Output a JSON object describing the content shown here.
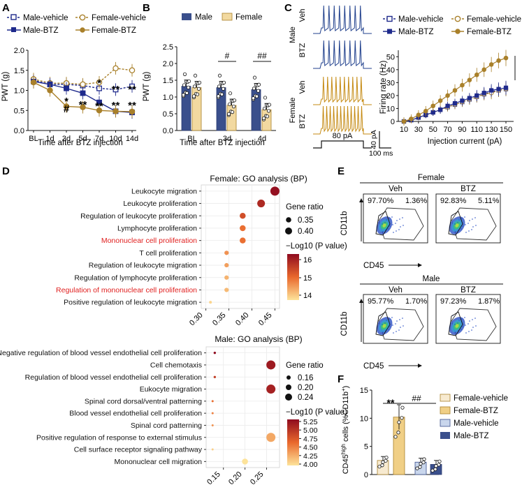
{
  "panels": {
    "A": {
      "label": "A",
      "legend": [
        "Male-vehicle",
        "Female-vehicle",
        "Male-BTZ",
        "Female-BTZ"
      ],
      "ylabel": "PWT (g)",
      "xlabel": "Time after BTZ injection",
      "xticks": [
        "BL",
        "1d",
        "3d",
        "5d",
        "7d",
        "10d",
        "14d"
      ],
      "yticks": [
        "0.0",
        "0.5",
        "1.0",
        "1.5",
        "2.0"
      ],
      "sig_marks": [
        "*",
        "#",
        "**",
        "**",
        "*",
        "**",
        "**",
        "**",
        "**",
        "**"
      ]
    },
    "B": {
      "label": "B",
      "legend": [
        "Male",
        "Female"
      ],
      "ylabel": "PWT (g)",
      "xlabel": "Time after BTZ injection",
      "xticks": [
        "BL",
        "3d",
        "4d"
      ],
      "yticks": [
        "0.0",
        "0.5",
        "1.0",
        "1.5",
        "2.0",
        "2.5"
      ],
      "sig_marks": [
        "#",
        "##"
      ]
    },
    "C": {
      "label": "C",
      "trace_labels": [
        "Male",
        "Veh",
        "BTZ",
        "Female",
        "Veh",
        "BTZ"
      ],
      "stim_label": "80 pA",
      "scale_y": "40 pA",
      "scale_x": "100 ms",
      "legend": [
        "Male-vehicle",
        "Female-vehicle",
        "Male-BTZ",
        "Female-BTZ"
      ],
      "ylabel": "Firing rate (Hz)",
      "xlabel": "Injection current (pA)",
      "xticks": [
        "10",
        "30",
        "50",
        "70",
        "90",
        "110",
        "130",
        "150"
      ],
      "yticks": [
        "0",
        "10",
        "20",
        "30",
        "40",
        "50"
      ],
      "sig_mark": "**"
    },
    "D": {
      "label": "D",
      "female": {
        "title": "Female: GO analysis (BP)",
        "terms": [
          "Leukocyte migration",
          "Leukocyte proliferation",
          "Regulation of leukocyte proliferation",
          "Lymphocyte proliferation",
          "Mononuclear cell proliferation",
          "T cell proliferation",
          "Regulation of leukocyte migration",
          "Regulation of lymphocyte proliferation",
          "Regulation of mononuclear cell proliferation",
          "Positive regulation of leukocyte migration"
        ],
        "xticks": [
          "0.30",
          "0.35",
          "0.40",
          "0.45"
        ],
        "size_legend_title": "Gene ratio",
        "size_legend": [
          "0.35",
          "0.40"
        ],
        "color_legend_title": "−Log10 (P value)",
        "color_ticks": [
          "16",
          "15",
          "14"
        ]
      },
      "male": {
        "title": "Male: GO analysis (BP)",
        "terms": [
          "Negative regulation of blood vessel endothelial cell proliferation",
          "Cell chemotaxis",
          "Regulation of blood vessel endothelial cell proliferation",
          "Eukocyte migration",
          "Spinal cord dorsal/ventral patterning",
          "Blood vessel endothelial cell proliferation",
          "Spinal cord patterning",
          "Positive regulation of response to external stimulus",
          "Cell surface receptor signaling pathway",
          "Mononuclear cell migration"
        ],
        "xticks": [
          "0.15",
          "0.20",
          "0.25"
        ],
        "size_legend_title": "Gene ratio",
        "size_legend": [
          "0.16",
          "0.20",
          "0.24"
        ],
        "color_legend_title": "−Log10 (P value)",
        "color_ticks": [
          "5.25",
          "5.00",
          "4.75",
          "4.50",
          "4.25",
          "4.00"
        ]
      }
    },
    "E": {
      "label": "E",
      "female": {
        "group": "Female",
        "veh": "Veh",
        "btz": "BTZ",
        "veh_pct": [
          "97.70%",
          "1.36%"
        ],
        "btz_pct": [
          "92.83%",
          "5.11%"
        ]
      },
      "male": {
        "group": "Male",
        "veh": "Veh",
        "btz": "BTZ",
        "veh_pct": [
          "95.77%",
          "1.70%"
        ],
        "btz_pct": [
          "97.23%",
          "1.87%"
        ]
      },
      "y_axis": "CD11b",
      "x_axis": "CD45"
    },
    "F": {
      "label": "F",
      "ylabel_main": "CD45",
      "ylabel_sup1": "high",
      "ylabel_mid": " cells (%CD11b",
      "ylabel_sup2": "+",
      "ylabel_end": ")",
      "yticks": [
        "0",
        "5",
        "10",
        "15"
      ],
      "legend": [
        "Female-vehicle",
        "Female-BTZ",
        "Male-vehicle",
        "Male-BTZ"
      ],
      "sig_marks": [
        "**",
        "##"
      ]
    }
  },
  "chart_data": [
    {
      "type": "line",
      "panel": "A",
      "x": [
        "BL",
        "1d",
        "3d",
        "5d",
        "7d",
        "10d",
        "14d"
      ],
      "ylabel": "PWT (g)",
      "xlabel": "Time after BTZ injection",
      "ylim": [
        0,
        2.0
      ],
      "series": [
        {
          "name": "Male-vehicle",
          "values": [
            1.25,
            1.15,
            1.15,
            1.12,
            1.05,
            1.02,
            1.1
          ]
        },
        {
          "name": "Female-vehicle",
          "values": [
            1.28,
            1.18,
            1.18,
            1.15,
            1.2,
            1.55,
            1.5
          ]
        },
        {
          "name": "Male-BTZ",
          "values": [
            1.22,
            1.15,
            1.05,
            0.93,
            0.7,
            0.48,
            0.45
          ]
        },
        {
          "name": "Female-BTZ",
          "values": [
            1.2,
            1.0,
            0.6,
            0.58,
            0.5,
            0.48,
            0.47
          ]
        }
      ],
      "colors": {
        "male": "#1f2a8c",
        "female": "#a9802a"
      }
    },
    {
      "type": "bar",
      "panel": "B",
      "categories": [
        "BL",
        "3d",
        "4d"
      ],
      "ylabel": "PWT (g)",
      "xlabel": "Time after BTZ injection",
      "ylim": [
        0,
        2.5
      ],
      "series": [
        {
          "name": "Male",
          "values": [
            1.32,
            1.28,
            1.22
          ]
        },
        {
          "name": "Female",
          "values": [
            1.28,
            0.75,
            0.62
          ]
        }
      ],
      "colors": {
        "Male": "#3a4f8c",
        "Female": "#f2d9a0"
      }
    },
    {
      "type": "line",
      "panel": "C",
      "x": [
        10,
        20,
        30,
        40,
        50,
        60,
        70,
        80,
        90,
        100,
        110,
        120,
        130,
        140,
        150
      ],
      "ylabel": "Firing rate (Hz)",
      "xlabel": "Injection current (pA)",
      "ylim": [
        0,
        55
      ],
      "series": [
        {
          "name": "Male-vehicle",
          "values": [
            0,
            1,
            3,
            5,
            7,
            9,
            11,
            13,
            15,
            17,
            19,
            21,
            23,
            24,
            25
          ]
        },
        {
          "name": "Female-vehicle",
          "values": [
            0,
            1,
            3,
            5,
            7,
            9,
            11,
            13,
            15,
            17,
            19,
            21,
            22,
            24,
            25
          ]
        },
        {
          "name": "Male-BTZ",
          "values": [
            0,
            1,
            3,
            5,
            7,
            9,
            12,
            14,
            16,
            18,
            20,
            22,
            24,
            25,
            26
          ]
        },
        {
          "name": "Female-BTZ",
          "values": [
            0,
            2,
            5,
            8,
            12,
            16,
            20,
            24,
            28,
            32,
            36,
            40,
            44,
            47,
            49
          ]
        }
      ]
    },
    {
      "type": "scatter",
      "panel": "D-female",
      "categories": [
        "Leukocyte migration",
        "Leukocyte proliferation",
        "Regulation of leukocyte proliferation",
        "Lymphocyte proliferation",
        "Mononuclear cell proliferation",
        "T cell proliferation",
        "Regulation of leukocyte migration",
        "Regulation of lymphocyte proliferation",
        "Regulation of mononuclear cell proliferation",
        "Positive regulation of leukocyte migration"
      ],
      "gene_ratio": [
        0.45,
        0.42,
        0.38,
        0.38,
        0.38,
        0.345,
        0.345,
        0.345,
        0.345,
        0.31
      ],
      "neg_log10_p": [
        16.8,
        16.3,
        15.6,
        15.0,
        15.0,
        14.5,
        14.3,
        14.0,
        13.9,
        13.5
      ],
      "highlighted": [
        "Mononuclear cell proliferation",
        "Regulation of mononuclear cell proliferation"
      ],
      "xlim": [
        0.29,
        0.46
      ]
    },
    {
      "type": "scatter",
      "panel": "D-male",
      "categories": [
        "Negative regulation of blood vessel endothelial cell proliferation",
        "Cell chemotaxis",
        "Regulation of blood vessel endothelial cell proliferation",
        "Eukocyte migration",
        "Spinal cord dorsal/ventral patterning",
        "Blood vessel endothelial cell proliferation",
        "Spinal cord patterning",
        "Positive regulation of response to external stimulus",
        "Cell surface receptor signaling pathway",
        "Mononuclear cell migration"
      ],
      "gene_ratio": [
        0.13,
        0.26,
        0.13,
        0.26,
        0.125,
        0.125,
        0.125,
        0.26,
        0.125,
        0.2
      ],
      "neg_log10_p": [
        5.25,
        5.15,
        4.9,
        5.1,
        4.6,
        4.5,
        4.4,
        4.3,
        4.1,
        4.0
      ],
      "xlim": [
        0.11,
        0.28
      ]
    },
    {
      "type": "bar",
      "panel": "F",
      "categories": [
        "Female-vehicle",
        "Female-BTZ",
        "Male-vehicle",
        "Male-BTZ"
      ],
      "values": [
        2.5,
        10.2,
        2.2,
        1.8
      ],
      "ylim": [
        0,
        15
      ],
      "colors": [
        "#f7ead0",
        "#f0cf86",
        "#c9d6ec",
        "#3a4f8c"
      ]
    }
  ]
}
